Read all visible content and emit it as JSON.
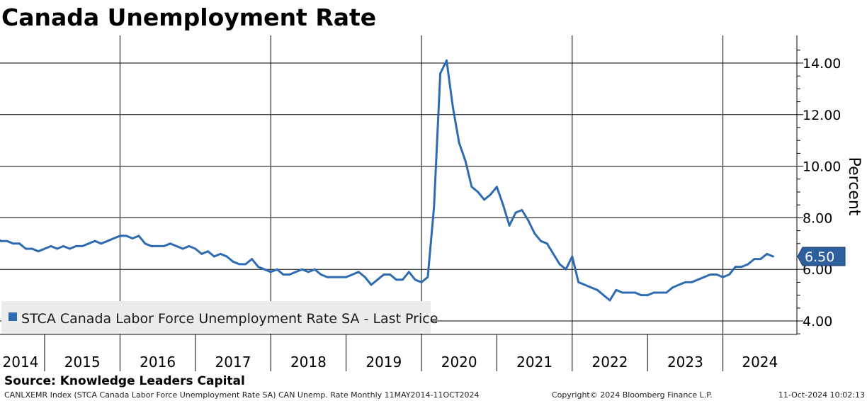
{
  "chart_data": {
    "type": "line",
    "title": "Canada Unemployment Rate",
    "ylabel": "Percent",
    "xlabel": "",
    "ylim": [
      3.5,
      15.0
    ],
    "yticks": [
      "4.00",
      "6.00",
      "8.00",
      "10.00",
      "12.00",
      "14.00"
    ],
    "year_labels": [
      "2014",
      "2015",
      "2016",
      "2017",
      "2018",
      "2019",
      "2020",
      "2021",
      "2022",
      "2023",
      "2024"
    ],
    "grid": true,
    "legend_position": "bottom-left",
    "last_value_label": "6.50",
    "series": [
      {
        "name": "STCA Canada Labor Force Unemployment Rate SA - Last Price",
        "color": "#2e6bb0",
        "start": "2014-05",
        "values": [
          7.3,
          7.1,
          7.1,
          7.0,
          7.0,
          6.8,
          6.8,
          6.7,
          6.8,
          6.9,
          6.8,
          6.9,
          6.8,
          6.9,
          6.9,
          7.0,
          7.1,
          7.0,
          7.1,
          7.2,
          7.3,
          7.3,
          7.2,
          7.3,
          7.0,
          6.9,
          6.9,
          6.9,
          7.0,
          6.9,
          6.8,
          6.9,
          6.8,
          6.6,
          6.7,
          6.5,
          6.6,
          6.5,
          6.3,
          6.2,
          6.2,
          6.4,
          6.1,
          6.0,
          5.9,
          6.0,
          5.8,
          5.8,
          5.9,
          6.0,
          5.9,
          6.0,
          5.8,
          5.7,
          5.7,
          5.7,
          5.7,
          5.8,
          5.9,
          5.7,
          5.4,
          5.6,
          5.8,
          5.8,
          5.6,
          5.6,
          5.9,
          5.6,
          5.5,
          5.7,
          8.4,
          13.6,
          14.1,
          12.3,
          10.9,
          10.2,
          9.2,
          9.0,
          8.7,
          8.9,
          9.2,
          8.5,
          7.7,
          8.2,
          8.3,
          7.9,
          7.4,
          7.1,
          7.0,
          6.6,
          6.2,
          6.0,
          6.5,
          5.5,
          5.4,
          5.3,
          5.2,
          5.0,
          4.8,
          5.2,
          5.1,
          5.1,
          5.1,
          5.0,
          5.0,
          5.1,
          5.1,
          5.1,
          5.3,
          5.4,
          5.5,
          5.5,
          5.6,
          5.7,
          5.8,
          5.8,
          5.7,
          5.8,
          6.1,
          6.1,
          6.2,
          6.4,
          6.4,
          6.6,
          6.5
        ]
      }
    ]
  },
  "source": "Source: Knowledge Leaders Capital",
  "footer": {
    "left": "CANLXEMR Index (STCA Canada Labor Force Unemployment Rate SA) CAN Unemp. Rate  Monthly 11MAY2014-11OCT2024",
    "center": "Copyright© 2024 Bloomberg Finance L.P.",
    "right": "11-Oct-2024 10:02:13"
  }
}
